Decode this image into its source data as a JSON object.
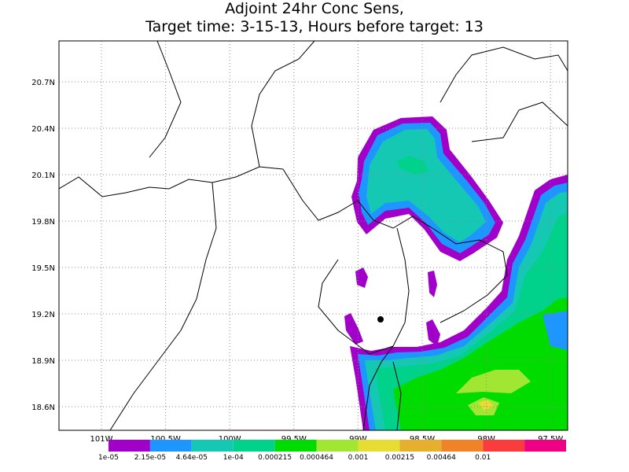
{
  "title": {
    "line1": "Adjoint 24hr Conc Sens,",
    "line2": "Target time: 3-15-13, Hours before target: 13"
  },
  "map": {
    "lat_labels": [
      "20.7N",
      "20.4N",
      "20.1N",
      "19.8N",
      "19.5N",
      "19.2N",
      "18.9N",
      "18.6N"
    ],
    "lon_labels": [
      "101W",
      "100.5W",
      "100W",
      "99.5W",
      "99W",
      "98.5W",
      "98W",
      "97.5W"
    ]
  },
  "colorbar": {
    "colors": [
      "#a000c8",
      "#1e96ff",
      "#14c8b4",
      "#00d28c",
      "#00dc00",
      "#a0e632",
      "#e6dc32",
      "#e6af2d",
      "#f08228",
      "#fa3c3c",
      "#f00082"
    ],
    "labels": [
      "1e-05",
      "2.15e-05",
      "4.64e-05",
      "1e-04",
      "0.000215",
      "0.000464",
      "0.001",
      "0.00215",
      "0.00464",
      "0.01"
    ]
  }
}
